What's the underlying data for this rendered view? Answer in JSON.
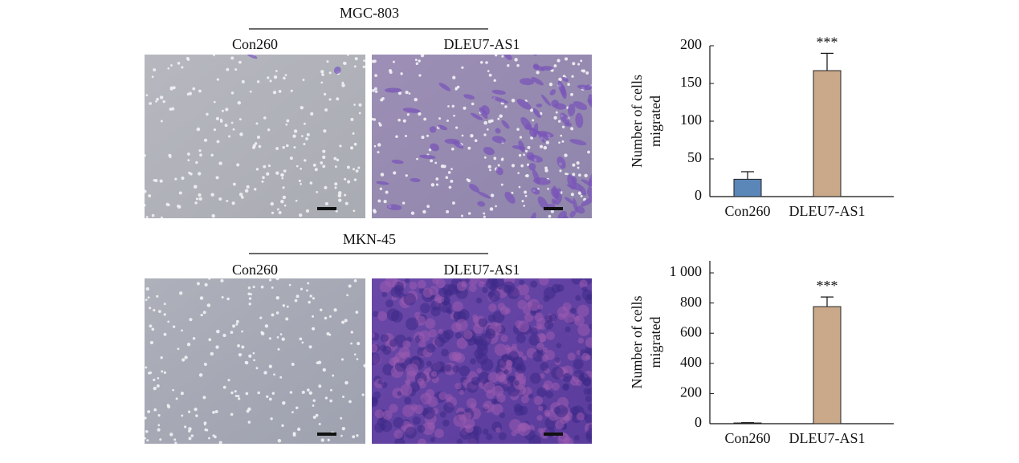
{
  "panels": [
    {
      "cell_line": "MGC-803",
      "images": [
        "Con260",
        "DLEU7-AS1"
      ]
    },
    {
      "cell_line": "MKN-45",
      "images": [
        "Con260",
        "DLEU7-AS1"
      ]
    }
  ],
  "chart_data": [
    {
      "type": "bar",
      "ylabel": [
        "Number of cells",
        "migrated"
      ],
      "categories": [
        "Con260",
        "DLEU7-AS1"
      ],
      "values": [
        23,
        167
      ],
      "errors": [
        10,
        23
      ],
      "colors": [
        "#5b87b8",
        "#c9a98a"
      ],
      "annotations": [
        "***"
      ],
      "ylim": [
        0,
        200
      ],
      "yticks": [
        0,
        50,
        100,
        150,
        200
      ]
    },
    {
      "type": "bar",
      "ylabel": [
        "Number of cells",
        "migrated"
      ],
      "categories": [
        "Con260",
        "DLEU7-AS1"
      ],
      "values": [
        5,
        776
      ],
      "errors": [
        2,
        64
      ],
      "colors": [
        "#5b87b8",
        "#c9a98a"
      ],
      "annotations": [
        "***"
      ],
      "ylim": [
        0,
        1080
      ],
      "yticks": [
        0,
        200,
        400,
        600,
        800,
        {
          "value": 1000,
          "label": "1 000"
        }
      ]
    }
  ]
}
